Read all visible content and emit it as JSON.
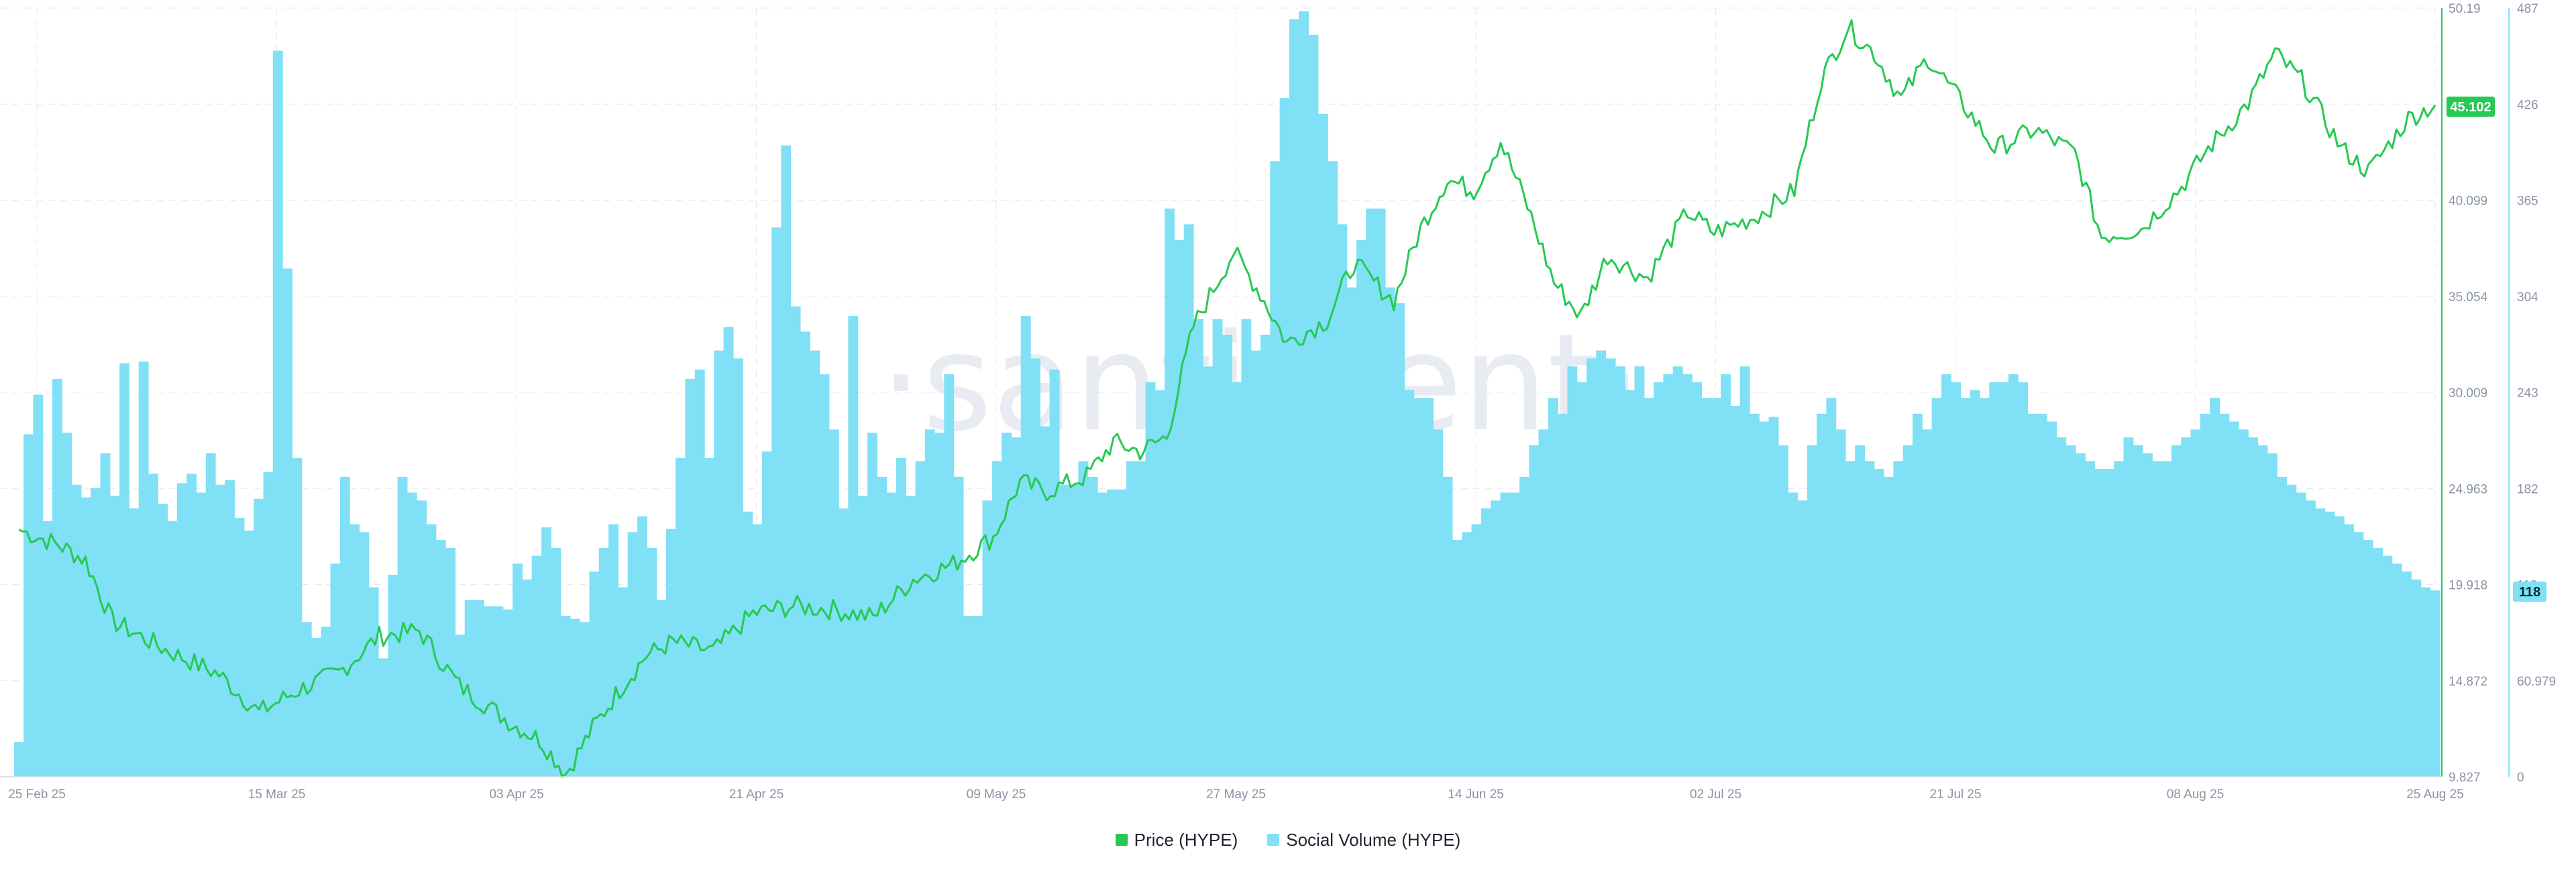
{
  "watermark": "·santiment·",
  "legend": [
    {
      "label": "Price (HYPE)",
      "color": "#26c953"
    },
    {
      "label": "Social Volume (HYPE)",
      "color": "#80e0f5"
    }
  ],
  "badges": {
    "price": {
      "value": "45.102",
      "color": "#26c953"
    },
    "volume": {
      "value": "118",
      "color": "#80e0f5"
    }
  },
  "chart_data": {
    "type": "line",
    "x_ticks": [
      "25 Feb 25",
      "15 Mar 25",
      "03 Apr 25",
      "21 Apr 25",
      "09 May 25",
      "27 May 25",
      "14 Jun 25",
      "02 Jul 25",
      "21 Jul 25",
      "08 Aug 25",
      "25 Aug 25"
    ],
    "x_range": [
      "2025-02-25",
      "2025-08-25"
    ],
    "price_axis": {
      "ticks": [
        "50.19",
        "45.102",
        "40.099",
        "35.054",
        "30.009",
        "24.963",
        "19.918",
        "14.872",
        "9.827"
      ],
      "ylim": [
        9.827,
        50.19
      ]
    },
    "volume_axis": {
      "ticks": [
        "487",
        "426",
        "365",
        "304",
        "243",
        "182",
        "118",
        "60.979",
        "0"
      ],
      "ylim": [
        0,
        487
      ]
    },
    "grid": true,
    "legend_position": "bottom-center",
    "series": [
      {
        "name": "Price (HYPE)",
        "axis": "left-of-right",
        "color": "#26c953",
        "points": [
          [
            "2025-02-25",
            22.8
          ],
          [
            "2025-02-28",
            22.0
          ],
          [
            "2025-03-02",
            21.2
          ],
          [
            "2025-03-04",
            18.0
          ],
          [
            "2025-03-08",
            16.5
          ],
          [
            "2025-03-12",
            15.2
          ],
          [
            "2025-03-15",
            13.2
          ],
          [
            "2025-03-18",
            14.4
          ],
          [
            "2025-03-21",
            15.3
          ],
          [
            "2025-03-24",
            17.2
          ],
          [
            "2025-03-27",
            17.5
          ],
          [
            "2025-03-30",
            14.6
          ],
          [
            "2025-04-03",
            12.6
          ],
          [
            "2025-04-05",
            11.8
          ],
          [
            "2025-04-07",
            10.0
          ],
          [
            "2025-04-09",
            12.4
          ],
          [
            "2025-04-11",
            14.4
          ],
          [
            "2025-04-13",
            16.2
          ],
          [
            "2025-04-15",
            16.9
          ],
          [
            "2025-04-18",
            16.4
          ],
          [
            "2025-04-21",
            18.4
          ],
          [
            "2025-04-24",
            18.8
          ],
          [
            "2025-04-27",
            18.6
          ],
          [
            "2025-04-30",
            18.2
          ],
          [
            "2025-05-03",
            20.2
          ],
          [
            "2025-05-06",
            21.0
          ],
          [
            "2025-05-09",
            22.4
          ],
          [
            "2025-05-11",
            25.3
          ],
          [
            "2025-05-13",
            24.8
          ],
          [
            "2025-05-16",
            25.6
          ],
          [
            "2025-05-18",
            27.4
          ],
          [
            "2025-05-20",
            26.9
          ],
          [
            "2025-05-22",
            27.7
          ],
          [
            "2025-05-24",
            33.5
          ],
          [
            "2025-05-27",
            37.4
          ],
          [
            "2025-05-29",
            35.2
          ],
          [
            "2025-05-31",
            32.6
          ],
          [
            "2025-06-03",
            33.8
          ],
          [
            "2025-06-05",
            36.8
          ],
          [
            "2025-06-08",
            34.8
          ],
          [
            "2025-06-10",
            38.6
          ],
          [
            "2025-06-12",
            41.2
          ],
          [
            "2025-06-14",
            40.6
          ],
          [
            "2025-06-16",
            43.2
          ],
          [
            "2025-06-18",
            39.8
          ],
          [
            "2025-06-20",
            35.8
          ],
          [
            "2025-06-22",
            34.0
          ],
          [
            "2025-06-24",
            37.2
          ],
          [
            "2025-06-27",
            36.0
          ],
          [
            "2025-06-30",
            39.5
          ],
          [
            "2025-07-02",
            38.4
          ],
          [
            "2025-07-05",
            39.2
          ],
          [
            "2025-07-08",
            40.6
          ],
          [
            "2025-07-10",
            46.4
          ],
          [
            "2025-07-12",
            49.2
          ],
          [
            "2025-07-14",
            47.8
          ],
          [
            "2025-07-16",
            45.4
          ],
          [
            "2025-07-18",
            47.6
          ],
          [
            "2025-07-21",
            44.8
          ],
          [
            "2025-07-23",
            42.8
          ],
          [
            "2025-07-26",
            43.8
          ],
          [
            "2025-07-29",
            42.6
          ],
          [
            "2025-07-31",
            38.2
          ],
          [
            "2025-08-03",
            38.6
          ],
          [
            "2025-08-06",
            40.8
          ],
          [
            "2025-08-08",
            42.8
          ],
          [
            "2025-08-11",
            45.2
          ],
          [
            "2025-08-13",
            47.8
          ],
          [
            "2025-08-15",
            46.4
          ],
          [
            "2025-08-18",
            42.8
          ],
          [
            "2025-08-20",
            41.6
          ],
          [
            "2025-08-23",
            44.4
          ],
          [
            "2025-08-25",
            45.1
          ]
        ]
      },
      {
        "name": "Social Volume (HYPE)",
        "axis": "right",
        "type": "bar",
        "color": "#80e0f5",
        "values": [
          22,
          217,
          242,
          162,
          252,
          218,
          185,
          177,
          183,
          205,
          178,
          262,
          170,
          263,
          192,
          173,
          162,
          186,
          192,
          180,
          205,
          185,
          188,
          164,
          156,
          176,
          193,
          460,
          322,
          202,
          98,
          88,
          95,
          135,
          190,
          160,
          155,
          120,
          75,
          128,
          190,
          180,
          175,
          160,
          150,
          145,
          90,
          112,
          112,
          108,
          108,
          106,
          135,
          125,
          140,
          158,
          145,
          102,
          100,
          98,
          130,
          145,
          160,
          120,
          155,
          165,
          145,
          112,
          157,
          202,
          252,
          258,
          202,
          270,
          285,
          265,
          168,
          160,
          206,
          348,
          400,
          298,
          282,
          270,
          255,
          220,
          170,
          292,
          178,
          218,
          190,
          180,
          202,
          178,
          200,
          220,
          218,
          255,
          190,
          102,
          102,
          175,
          200,
          218,
          215,
          292,
          265,
          222,
          258,
          185,
          185,
          200,
          190,
          180,
          182,
          182,
          200,
          200,
          250,
          245,
          360,
          340,
          350,
          290,
          260,
          290,
          280,
          250,
          290,
          270,
          280,
          390,
          430,
          480,
          485,
          470,
          420,
          390,
          350,
          310,
          340,
          360,
          360,
          310,
          300,
          245,
          240,
          240,
          220,
          190,
          150,
          155,
          160,
          170,
          175,
          180,
          180,
          190,
          210,
          220,
          240,
          230,
          260,
          250,
          265,
          270,
          265,
          260,
          245,
          260,
          240,
          250,
          255,
          260,
          255,
          250,
          240,
          240,
          255,
          235,
          260,
          230,
          225,
          228,
          210,
          180,
          175,
          210,
          230,
          240,
          220,
          200,
          210,
          200,
          195,
          190,
          200,
          210,
          230,
          220,
          240,
          255,
          250,
          240,
          245,
          240,
          250,
          250,
          255,
          250,
          230,
          230,
          225,
          215,
          210,
          205,
          200,
          195,
          195,
          200,
          215,
          210,
          205,
          200,
          200,
          210,
          215,
          220,
          230,
          240,
          230,
          225,
          220,
          215,
          210,
          205,
          190,
          185,
          180,
          175,
          170,
          168,
          165,
          160,
          155,
          150,
          145,
          140,
          135,
          130,
          125,
          120,
          118
        ]
      }
    ]
  }
}
